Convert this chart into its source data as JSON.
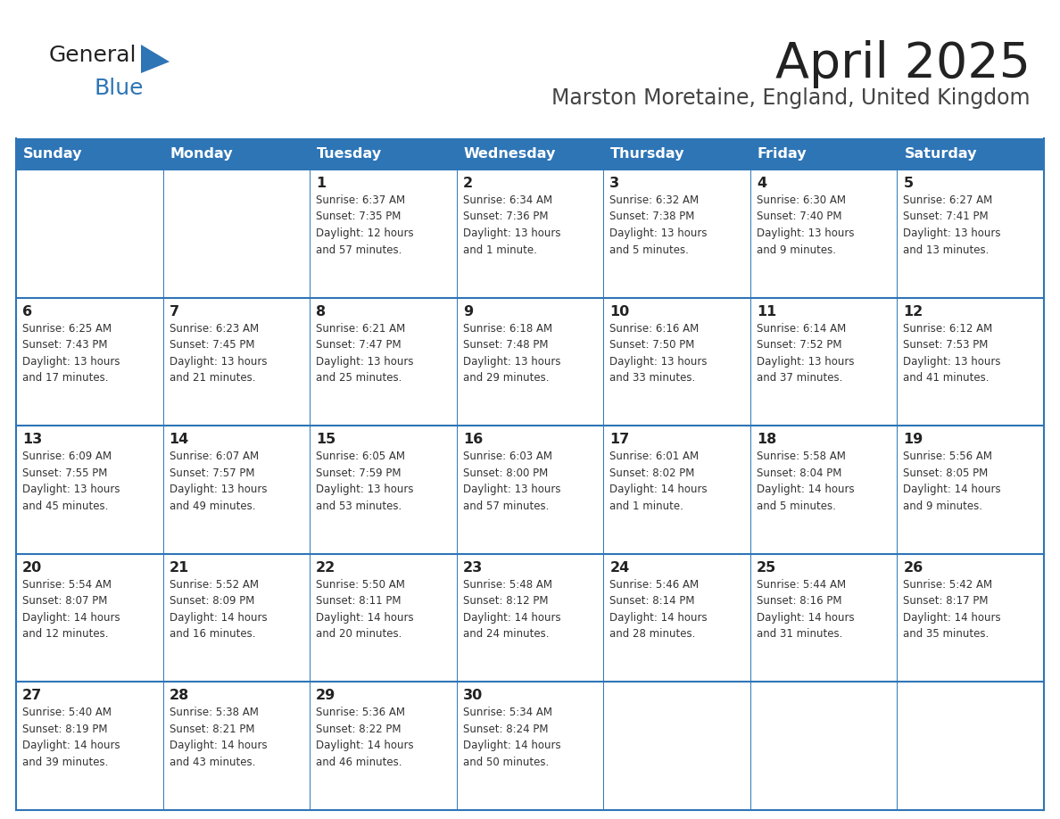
{
  "title": "April 2025",
  "subtitle": "Marston Moretaine, England, United Kingdom",
  "header_color": "#2E75B6",
  "header_text_color": "#FFFFFF",
  "cell_bg": "#FFFFFF",
  "row_bg_alt": "#F5F5F5",
  "border_color": "#2E75B6",
  "day_headers": [
    "Sunday",
    "Monday",
    "Tuesday",
    "Wednesday",
    "Thursday",
    "Friday",
    "Saturday"
  ],
  "weeks": [
    [
      {
        "day": "",
        "text": ""
      },
      {
        "day": "",
        "text": ""
      },
      {
        "day": "1",
        "text": "Sunrise: 6:37 AM\nSunset: 7:35 PM\nDaylight: 12 hours\nand 57 minutes."
      },
      {
        "day": "2",
        "text": "Sunrise: 6:34 AM\nSunset: 7:36 PM\nDaylight: 13 hours\nand 1 minute."
      },
      {
        "day": "3",
        "text": "Sunrise: 6:32 AM\nSunset: 7:38 PM\nDaylight: 13 hours\nand 5 minutes."
      },
      {
        "day": "4",
        "text": "Sunrise: 6:30 AM\nSunset: 7:40 PM\nDaylight: 13 hours\nand 9 minutes."
      },
      {
        "day": "5",
        "text": "Sunrise: 6:27 AM\nSunset: 7:41 PM\nDaylight: 13 hours\nand 13 minutes."
      }
    ],
    [
      {
        "day": "6",
        "text": "Sunrise: 6:25 AM\nSunset: 7:43 PM\nDaylight: 13 hours\nand 17 minutes."
      },
      {
        "day": "7",
        "text": "Sunrise: 6:23 AM\nSunset: 7:45 PM\nDaylight: 13 hours\nand 21 minutes."
      },
      {
        "day": "8",
        "text": "Sunrise: 6:21 AM\nSunset: 7:47 PM\nDaylight: 13 hours\nand 25 minutes."
      },
      {
        "day": "9",
        "text": "Sunrise: 6:18 AM\nSunset: 7:48 PM\nDaylight: 13 hours\nand 29 minutes."
      },
      {
        "day": "10",
        "text": "Sunrise: 6:16 AM\nSunset: 7:50 PM\nDaylight: 13 hours\nand 33 minutes."
      },
      {
        "day": "11",
        "text": "Sunrise: 6:14 AM\nSunset: 7:52 PM\nDaylight: 13 hours\nand 37 minutes."
      },
      {
        "day": "12",
        "text": "Sunrise: 6:12 AM\nSunset: 7:53 PM\nDaylight: 13 hours\nand 41 minutes."
      }
    ],
    [
      {
        "day": "13",
        "text": "Sunrise: 6:09 AM\nSunset: 7:55 PM\nDaylight: 13 hours\nand 45 minutes."
      },
      {
        "day": "14",
        "text": "Sunrise: 6:07 AM\nSunset: 7:57 PM\nDaylight: 13 hours\nand 49 minutes."
      },
      {
        "day": "15",
        "text": "Sunrise: 6:05 AM\nSunset: 7:59 PM\nDaylight: 13 hours\nand 53 minutes."
      },
      {
        "day": "16",
        "text": "Sunrise: 6:03 AM\nSunset: 8:00 PM\nDaylight: 13 hours\nand 57 minutes."
      },
      {
        "day": "17",
        "text": "Sunrise: 6:01 AM\nSunset: 8:02 PM\nDaylight: 14 hours\nand 1 minute."
      },
      {
        "day": "18",
        "text": "Sunrise: 5:58 AM\nSunset: 8:04 PM\nDaylight: 14 hours\nand 5 minutes."
      },
      {
        "day": "19",
        "text": "Sunrise: 5:56 AM\nSunset: 8:05 PM\nDaylight: 14 hours\nand 9 minutes."
      }
    ],
    [
      {
        "day": "20",
        "text": "Sunrise: 5:54 AM\nSunset: 8:07 PM\nDaylight: 14 hours\nand 12 minutes."
      },
      {
        "day": "21",
        "text": "Sunrise: 5:52 AM\nSunset: 8:09 PM\nDaylight: 14 hours\nand 16 minutes."
      },
      {
        "day": "22",
        "text": "Sunrise: 5:50 AM\nSunset: 8:11 PM\nDaylight: 14 hours\nand 20 minutes."
      },
      {
        "day": "23",
        "text": "Sunrise: 5:48 AM\nSunset: 8:12 PM\nDaylight: 14 hours\nand 24 minutes."
      },
      {
        "day": "24",
        "text": "Sunrise: 5:46 AM\nSunset: 8:14 PM\nDaylight: 14 hours\nand 28 minutes."
      },
      {
        "day": "25",
        "text": "Sunrise: 5:44 AM\nSunset: 8:16 PM\nDaylight: 14 hours\nand 31 minutes."
      },
      {
        "day": "26",
        "text": "Sunrise: 5:42 AM\nSunset: 8:17 PM\nDaylight: 14 hours\nand 35 minutes."
      }
    ],
    [
      {
        "day": "27",
        "text": "Sunrise: 5:40 AM\nSunset: 8:19 PM\nDaylight: 14 hours\nand 39 minutes."
      },
      {
        "day": "28",
        "text": "Sunrise: 5:38 AM\nSunset: 8:21 PM\nDaylight: 14 hours\nand 43 minutes."
      },
      {
        "day": "29",
        "text": "Sunrise: 5:36 AM\nSunset: 8:22 PM\nDaylight: 14 hours\nand 46 minutes."
      },
      {
        "day": "30",
        "text": "Sunrise: 5:34 AM\nSunset: 8:24 PM\nDaylight: 14 hours\nand 50 minutes."
      },
      {
        "day": "",
        "text": ""
      },
      {
        "day": "",
        "text": ""
      },
      {
        "day": "",
        "text": ""
      }
    ]
  ],
  "logo_color_general": "#222222",
  "logo_color_blue": "#2E75B6",
  "title_color": "#222222",
  "subtitle_color": "#444444"
}
